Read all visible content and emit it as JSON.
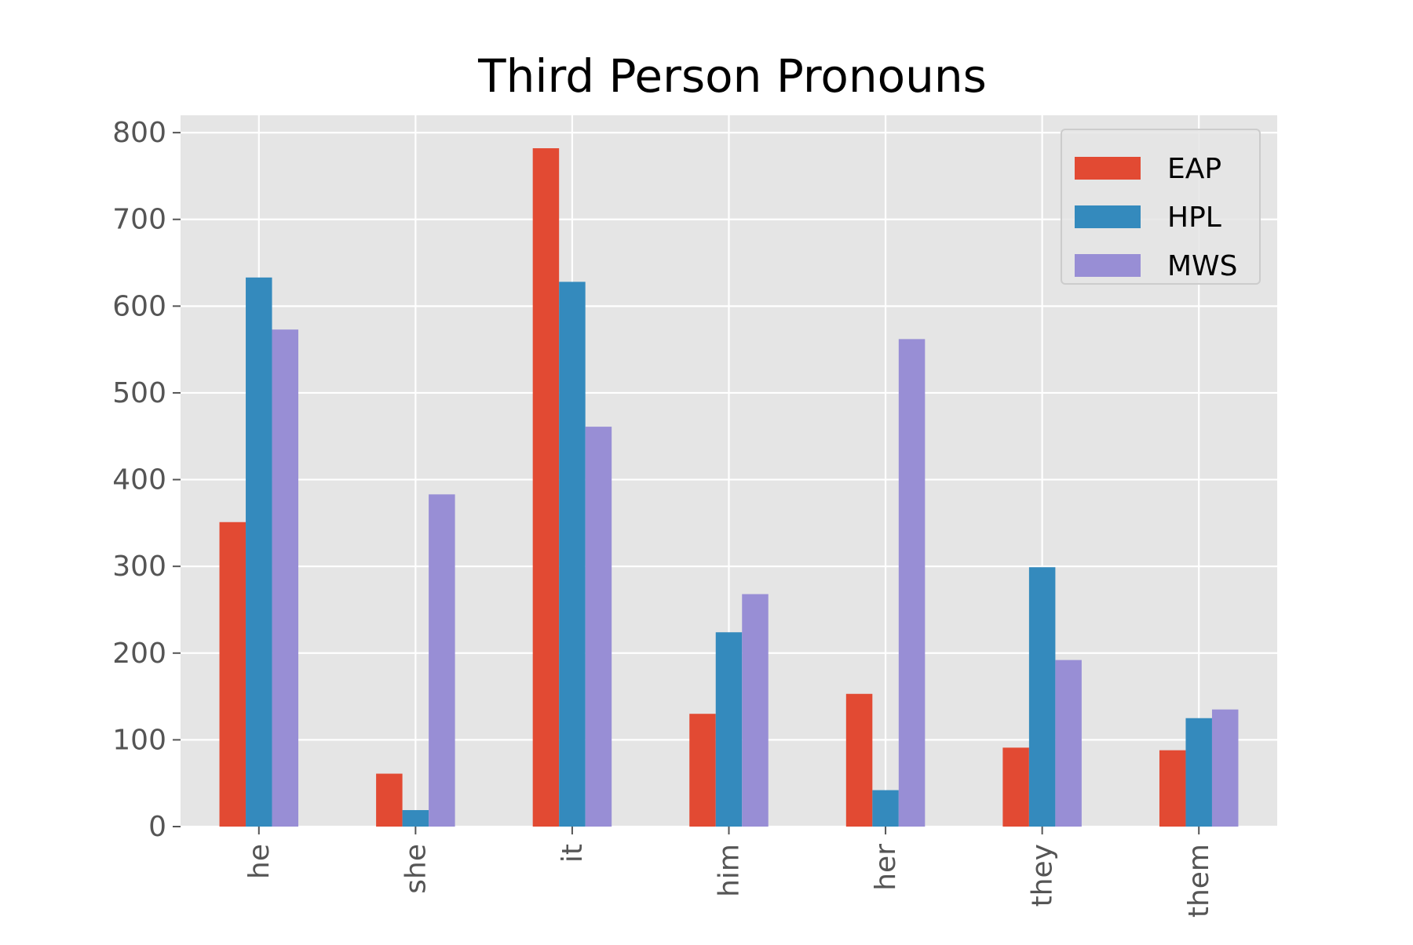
{
  "chart_data": {
    "type": "bar",
    "title": "Third Person Pronouns",
    "xlabel": "",
    "ylabel": "",
    "categories": [
      "he",
      "she",
      "it",
      "him",
      "her",
      "they",
      "them"
    ],
    "series": [
      {
        "name": "EAP",
        "values": [
          351,
          61,
          782,
          130,
          153,
          91,
          88
        ],
        "color": "#E24A33"
      },
      {
        "name": "HPL",
        "values": [
          633,
          19,
          628,
          224,
          42,
          299,
          125
        ],
        "color": "#348ABD"
      },
      {
        "name": "MWS",
        "values": [
          573,
          383,
          461,
          268,
          562,
          192,
          135
        ],
        "color": "#988ED5"
      }
    ],
    "ylim": [
      0,
      820
    ],
    "yticks": [
      0,
      100,
      200,
      300,
      400,
      500,
      600,
      700,
      800
    ],
    "grid": true,
    "legend_position": "top-right",
    "colors": {
      "plot_background": "#E5E5E5",
      "grid": "#FFFFFF",
      "tick_label": "#555555"
    }
  }
}
